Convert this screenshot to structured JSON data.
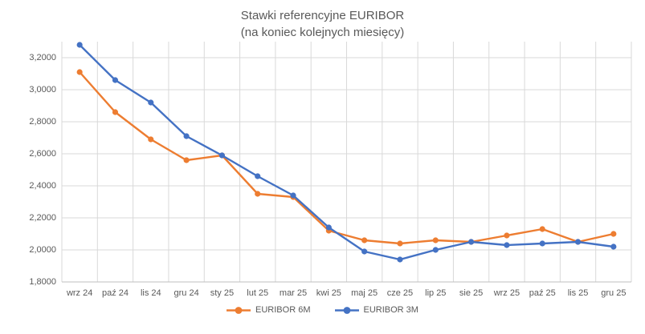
{
  "title": {
    "line1": "Stawki referencyjne EURIBOR",
    "line2": "(na koniec kolejnych miesięcy)"
  },
  "chart_data": {
    "type": "line",
    "title": "Stawki referencyjne EURIBOR",
    "subtitle": "(na koniec kolejnych miesięcy)",
    "categories": [
      "wrz 24",
      "paź 24",
      "lis 24",
      "gru 24",
      "sty 25",
      "lut 25",
      "mar 25",
      "kwi 25",
      "maj 25",
      "cze 25",
      "lip 25",
      "sie 25",
      "wrz 25",
      "paź 25",
      "lis 25",
      "gru 25"
    ],
    "series": [
      {
        "name": "EURIBOR 6M",
        "color": "#ED7D31",
        "values": [
          3.11,
          2.86,
          2.69,
          2.56,
          2.59,
          2.35,
          2.33,
          2.12,
          2.06,
          2.04,
          2.06,
          2.05,
          2.09,
          2.13,
          2.05,
          2.1
        ]
      },
      {
        "name": "EURIBOR 3M",
        "color": "#4472C4",
        "values": [
          3.28,
          3.06,
          2.92,
          2.71,
          2.59,
          2.46,
          2.34,
          2.14,
          1.99,
          1.94,
          2.0,
          2.05,
          2.03,
          2.04,
          2.05,
          2.02
        ]
      }
    ],
    "y_axis": {
      "min": 1.8,
      "max": 3.3,
      "ticks": [
        {
          "value": 1.8,
          "label": "1,8000"
        },
        {
          "value": 2.0,
          "label": "2,0000"
        },
        {
          "value": 2.2,
          "label": "2,2000"
        },
        {
          "value": 2.4,
          "label": "2,4000"
        },
        {
          "value": 2.6,
          "label": "2,6000"
        },
        {
          "value": 2.8,
          "label": "2,8000"
        },
        {
          "value": 3.0,
          "label": "3,0000"
        },
        {
          "value": 3.2,
          "label": "3,2000"
        }
      ]
    },
    "legend_position": "bottom",
    "grid": true,
    "colors": {
      "gridline": "#D9D9D9",
      "axis_line": "#BFBFBF",
      "text": "#595959",
      "background": "#FFFFFF"
    }
  }
}
